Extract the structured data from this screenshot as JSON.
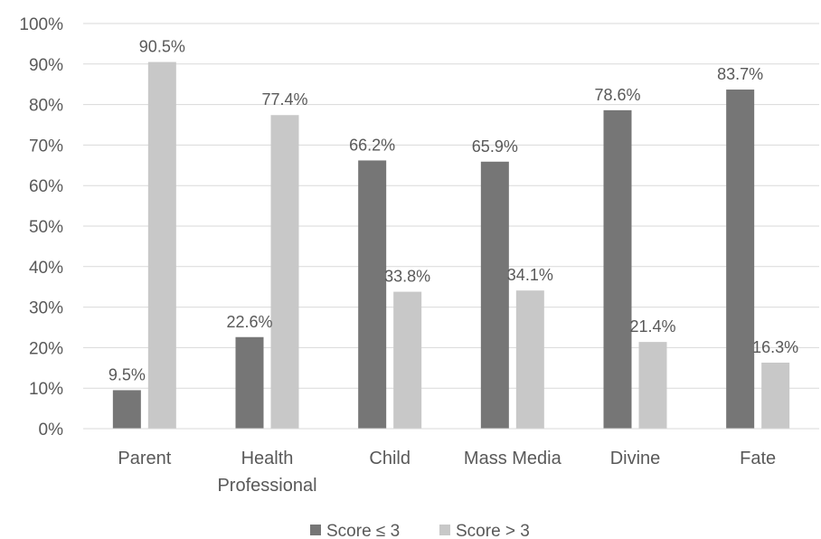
{
  "chart_data": {
    "type": "bar",
    "categories": [
      "Parent",
      "Health Professional",
      "Child",
      "Mass Media",
      "Divine",
      "Fate"
    ],
    "category_lines": [
      [
        "Parent"
      ],
      [
        "Health",
        "Professional"
      ],
      [
        "Child"
      ],
      [
        "Mass Media"
      ],
      [
        "Divine"
      ],
      [
        "Fate"
      ]
    ],
    "series": [
      {
        "name": "Score ≤ 3",
        "values": [
          9.5,
          22.6,
          66.2,
          65.9,
          78.6,
          83.7
        ],
        "labels": [
          "9.5%",
          "22.6%",
          "66.2%",
          "65.9%",
          "78.6%",
          "83.7%"
        ],
        "color": "#767676"
      },
      {
        "name": "Score > 3",
        "values": [
          90.5,
          77.4,
          33.8,
          34.1,
          21.4,
          16.3
        ],
        "labels": [
          "90.5%",
          "77.4%",
          "33.8%",
          "34.1%",
          "21.4%",
          "16.3%"
        ],
        "color": "#c8c8c8"
      }
    ],
    "ylim": [
      0,
      100
    ],
    "yticks": [
      0,
      10,
      20,
      30,
      40,
      50,
      60,
      70,
      80,
      90,
      100
    ],
    "ytick_labels": [
      "0%",
      "10%",
      "20%",
      "30%",
      "40%",
      "50%",
      "60%",
      "70%",
      "80%",
      "90%",
      "100%"
    ],
    "title": "",
    "xlabel": "",
    "ylabel": "",
    "grid": true,
    "grid_color": "#d9d9d9",
    "legend_position": "bottom"
  }
}
